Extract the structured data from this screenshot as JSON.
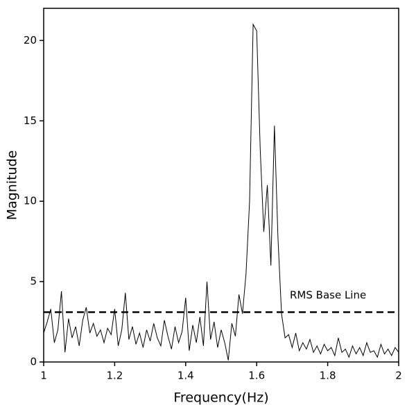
{
  "chart_data": {
    "type": "line",
    "x_label": "Frequency(Hz)",
    "y_label": "Magnitude",
    "x": [
      1.0,
      1.01,
      1.02,
      1.03,
      1.04,
      1.05,
      1.06,
      1.07,
      1.08,
      1.09,
      1.1,
      1.11,
      1.12,
      1.13,
      1.14,
      1.15,
      1.16,
      1.17,
      1.18,
      1.19,
      1.2,
      1.21,
      1.22,
      1.23,
      1.24,
      1.25,
      1.26,
      1.27,
      1.28,
      1.29,
      1.3,
      1.31,
      1.32,
      1.33,
      1.34,
      1.35,
      1.36,
      1.37,
      1.38,
      1.39,
      1.4,
      1.41,
      1.42,
      1.43,
      1.44,
      1.45,
      1.46,
      1.47,
      1.48,
      1.49,
      1.5,
      1.51,
      1.52,
      1.53,
      1.54,
      1.55,
      1.56,
      1.57,
      1.58,
      1.59,
      1.6,
      1.61,
      1.62,
      1.63,
      1.64,
      1.65,
      1.66,
      1.67,
      1.68,
      1.69,
      1.7,
      1.71,
      1.72,
      1.73,
      1.74,
      1.75,
      1.76,
      1.77,
      1.78,
      1.79,
      1.8,
      1.81,
      1.82,
      1.83,
      1.84,
      1.85,
      1.86,
      1.87,
      1.88,
      1.89,
      1.9,
      1.91,
      1.92,
      1.93,
      1.94,
      1.95,
      1.96,
      1.97,
      1.98,
      1.99,
      2.0
    ],
    "values": [
      1.8,
      2.5,
      3.3,
      1.2,
      2.0,
      4.4,
      0.6,
      2.7,
      1.5,
      2.2,
      1.0,
      2.6,
      3.4,
      1.8,
      2.4,
      1.6,
      2.0,
      1.2,
      2.1,
      1.7,
      3.3,
      1.0,
      2.0,
      4.3,
      1.4,
      2.2,
      1.1,
      1.8,
      0.9,
      2.0,
      1.3,
      2.4,
      1.5,
      1.0,
      2.6,
      1.6,
      0.8,
      2.2,
      1.2,
      1.9,
      4.0,
      0.7,
      2.3,
      1.2,
      2.8,
      1.0,
      5.0,
      1.4,
      2.5,
      0.9,
      2.0,
      1.2,
      0.1,
      2.4,
      1.6,
      4.2,
      3.0,
      5.5,
      10.0,
      21.0,
      20.6,
      13.2,
      8.1,
      11.0,
      6.0,
      14.7,
      7.7,
      3.0,
      1.5,
      1.7,
      0.9,
      1.8,
      0.7,
      1.2,
      0.8,
      1.4,
      0.6,
      1.0,
      0.5,
      1.1,
      0.7,
      0.9,
      0.4,
      1.5,
      0.6,
      0.8,
      0.3,
      1.0,
      0.5,
      0.9,
      0.4,
      1.2,
      0.6,
      0.7,
      0.3,
      1.1,
      0.5,
      0.8,
      0.4,
      0.9,
      0.6
    ],
    "color": "#000000",
    "baseline": {
      "value": 3.1,
      "label": "RMS Base Line"
    },
    "xlim": [
      1,
      2
    ],
    "xticks": [
      1,
      1.2,
      1.4,
      1.6,
      1.8,
      2
    ],
    "ylim": [
      0,
      22
    ],
    "yticks": [
      0,
      5,
      10,
      15,
      20
    ]
  }
}
